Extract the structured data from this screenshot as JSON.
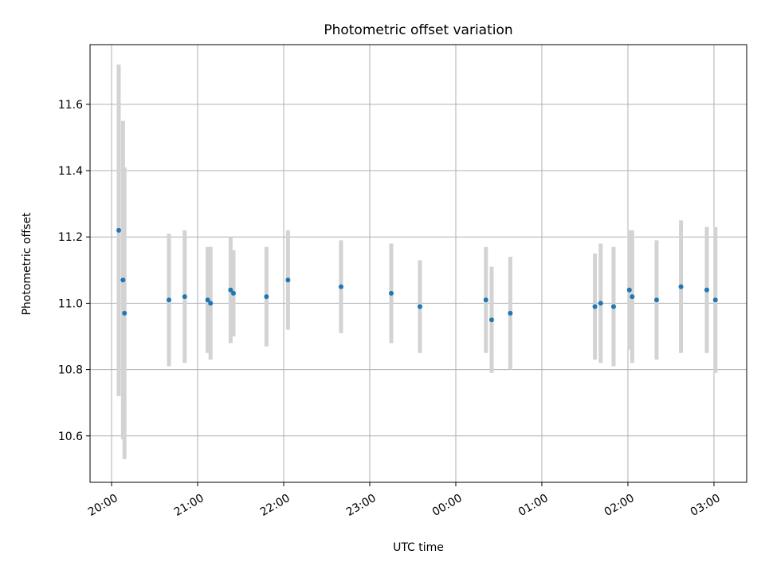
{
  "chart_data": {
    "type": "scatter",
    "title": "Photometric offset variation",
    "xlabel": "UTC time",
    "ylabel": "Photometric offset",
    "x_tick_labels": [
      "20:00",
      "21:00",
      "22:00",
      "23:00",
      "00:00",
      "01:00",
      "02:00",
      "03:00"
    ],
    "y_ticks": [
      10.6,
      10.8,
      11.0,
      11.2,
      11.4,
      11.6
    ],
    "y_tick_labels": [
      "10.6",
      "10.8",
      "11.0",
      "11.2",
      "11.4",
      "11.6"
    ],
    "xlim_hours": [
      19.75,
      27.38
    ],
    "ylim": [
      10.46,
      11.78
    ],
    "grid": true,
    "colors": {
      "point": "#1f77b4",
      "errorbar": "#d3d3d3",
      "grid": "#b0b0b0"
    },
    "points": [
      {
        "t": "20:05",
        "y": 11.22,
        "err": 0.5
      },
      {
        "t": "20:08",
        "y": 11.07,
        "err": 0.48
      },
      {
        "t": "20:09",
        "y": 10.97,
        "err": 0.44
      },
      {
        "t": "20:40",
        "y": 11.01,
        "err": 0.2
      },
      {
        "t": "20:51",
        "y": 11.02,
        "err": 0.2
      },
      {
        "t": "21:07",
        "y": 11.01,
        "err": 0.16
      },
      {
        "t": "21:09",
        "y": 11.0,
        "err": 0.17
      },
      {
        "t": "21:23",
        "y": 11.04,
        "err": 0.16
      },
      {
        "t": "21:25",
        "y": 11.03,
        "err": 0.13
      },
      {
        "t": "21:48",
        "y": 11.02,
        "err": 0.15
      },
      {
        "t": "22:03",
        "y": 11.07,
        "err": 0.15
      },
      {
        "t": "22:40",
        "y": 11.05,
        "err": 0.14
      },
      {
        "t": "23:15",
        "y": 11.03,
        "err": 0.15
      },
      {
        "t": "23:35",
        "y": 10.99,
        "err": 0.14
      },
      {
        "t": "00:21",
        "y": 11.01,
        "err": 0.16
      },
      {
        "t": "00:25",
        "y": 10.95,
        "err": 0.16
      },
      {
        "t": "00:38",
        "y": 10.97,
        "err": 0.17
      },
      {
        "t": "01:37",
        "y": 10.99,
        "err": 0.16
      },
      {
        "t": "01:41",
        "y": 11.0,
        "err": 0.18
      },
      {
        "t": "01:50",
        "y": 10.99,
        "err": 0.18
      },
      {
        "t": "02:01",
        "y": 11.04,
        "err": 0.18
      },
      {
        "t": "02:03",
        "y": 11.02,
        "err": 0.2
      },
      {
        "t": "02:20",
        "y": 11.01,
        "err": 0.18
      },
      {
        "t": "02:37",
        "y": 11.05,
        "err": 0.2
      },
      {
        "t": "02:55",
        "y": 11.04,
        "err": 0.19
      },
      {
        "t": "03:01",
        "y": 11.01,
        "err": 0.22
      }
    ]
  }
}
